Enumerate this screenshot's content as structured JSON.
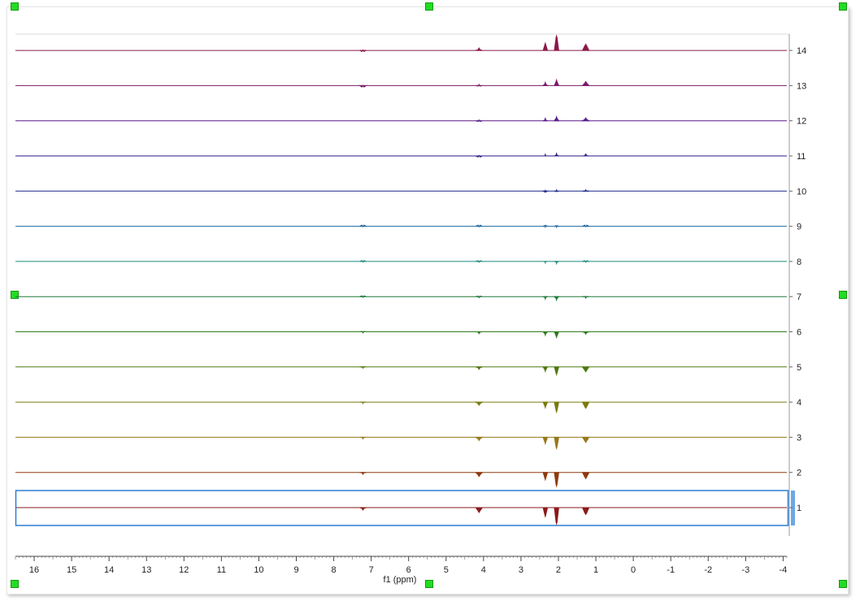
{
  "chart_data": {
    "type": "line",
    "title": "",
    "xlabel": "f1 (ppm)",
    "ylabel": "",
    "x_axis": {
      "direction": "reversed",
      "range": [
        16.5,
        -4.1
      ],
      "ticks": [
        16,
        15,
        14,
        13,
        12,
        11,
        10,
        9,
        8,
        7,
        6,
        5,
        4,
        3,
        2,
        1,
        0,
        -1,
        -2,
        -3,
        -4
      ],
      "tick_labels": [
        "16",
        "15",
        "14",
        "13",
        "12",
        "11",
        "10",
        "9",
        "8",
        "7",
        "6",
        "5",
        "4",
        "3",
        "2",
        "1",
        "0",
        "-1",
        "-2",
        "-3",
        "-4"
      ]
    },
    "y_axis": {
      "position": "right",
      "ticks": [
        1,
        2,
        3,
        4,
        5,
        6,
        7,
        8,
        9,
        10,
        11,
        12,
        13,
        14
      ],
      "tick_labels": [
        "1",
        "2",
        "3",
        "4",
        "5",
        "6",
        "7",
        "8",
        "9",
        "10",
        "11",
        "12",
        "13",
        "14"
      ]
    },
    "grid": false,
    "selected_trace": 1,
    "peak_positions_ppm": [
      7.22,
      4.12,
      2.35,
      2.05,
      1.27
    ],
    "series": [
      {
        "trace": 1,
        "color": "#8b1a1a",
        "intensities": [
          -0.15,
          -0.3,
          -0.55,
          -1.0,
          -0.42
        ]
      },
      {
        "trace": 2,
        "color": "#8e3a10",
        "intensities": [
          -0.12,
          -0.25,
          -0.45,
          -0.85,
          -0.38
        ]
      },
      {
        "trace": 3,
        "color": "#97781a",
        "intensities": [
          -0.1,
          -0.2,
          -0.4,
          -0.7,
          -0.32
        ]
      },
      {
        "trace": 4,
        "color": "#7a7a10",
        "intensities": [
          -0.09,
          -0.2,
          -0.35,
          -0.62,
          -0.38
        ]
      },
      {
        "trace": 5,
        "color": "#4e7a10",
        "intensities": [
          -0.08,
          -0.15,
          -0.28,
          -0.48,
          -0.3
        ]
      },
      {
        "trace": 6,
        "color": "#2f7a1e",
        "intensities": [
          -0.07,
          -0.12,
          -0.22,
          -0.35,
          -0.15
        ]
      },
      {
        "trace": 7,
        "color": "#1e7a3a",
        "intensities": [
          -0.05,
          -0.07,
          -0.15,
          -0.22,
          -0.09
        ]
      },
      {
        "trace": 8,
        "color": "#1e8a7a",
        "intensities": [
          -0.04,
          -0.05,
          -0.1,
          -0.14,
          -0.05
        ]
      },
      {
        "trace": 9,
        "color": "#1e6aa0",
        "intensities": [
          -0.03,
          -0.03,
          -0.05,
          -0.06,
          -0.03
        ]
      },
      {
        "trace": 10,
        "color": "#1a2a8a",
        "intensities": [
          0.0,
          0.0,
          0.04,
          0.07,
          0.08
        ]
      },
      {
        "trace": 11,
        "color": "#2a1a8a",
        "intensities": [
          0.0,
          0.03,
          0.1,
          0.15,
          0.12
        ]
      },
      {
        "trace": 12,
        "color": "#5a1a8a",
        "intensities": [
          0.0,
          0.05,
          0.15,
          0.25,
          0.18
        ]
      },
      {
        "trace": 13,
        "color": "#7a1a6a",
        "intensities": [
          0.01,
          0.07,
          0.2,
          0.35,
          0.25
        ]
      },
      {
        "trace": 14,
        "color": "#8a1a4a",
        "intensities": [
          0.03,
          0.15,
          0.45,
          0.9,
          0.38
        ]
      }
    ]
  }
}
